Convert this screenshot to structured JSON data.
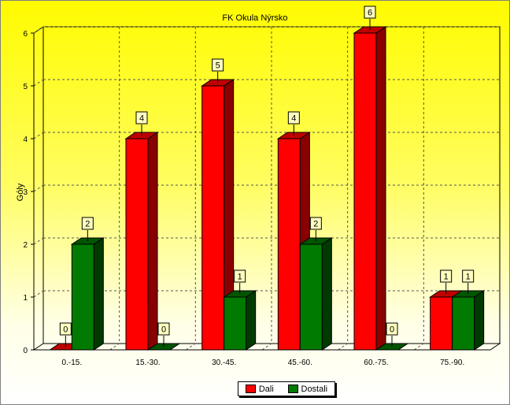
{
  "chart_data": {
    "type": "bar",
    "title": "FK Okula Nýrsko",
    "xlabel": "",
    "ylabel": "Góly",
    "categories": [
      "0.-15.",
      "15.-30.",
      "30.-45.",
      "45.-60.",
      "60.-75.",
      "75.-90."
    ],
    "series": [
      {
        "name": "Dali",
        "values": [
          0,
          4,
          5,
          4,
          6,
          1
        ],
        "color": "#ff0000",
        "side": "#8a0000",
        "top": "#c00000"
      },
      {
        "name": "Dostali",
        "values": [
          2,
          0,
          1,
          2,
          0,
          1
        ],
        "color": "#007a00",
        "side": "#003a00",
        "top": "#005500"
      }
    ],
    "ylim": [
      0,
      6
    ],
    "yticks": [
      "0",
      "1",
      "2",
      "3",
      "4",
      "5",
      "6"
    ],
    "grid": true,
    "legend_position": "bottom-center",
    "style": "3d-bar"
  }
}
